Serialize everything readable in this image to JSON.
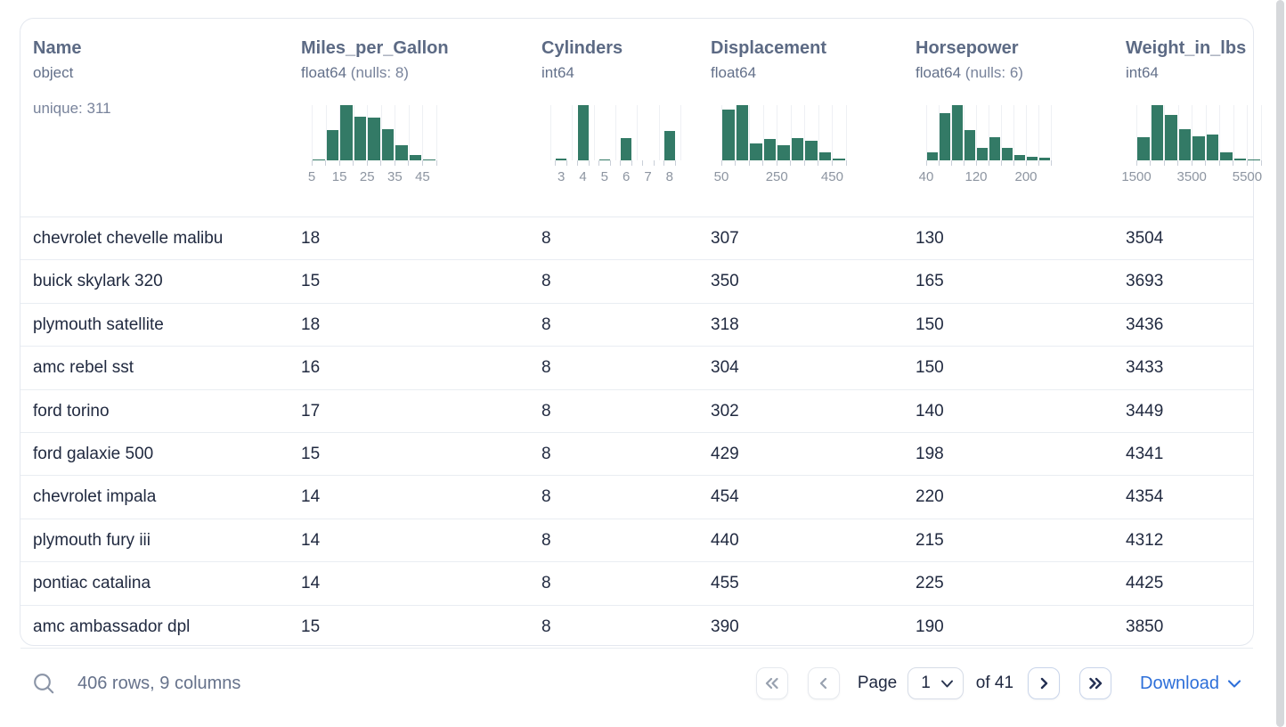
{
  "table": {
    "columns": [
      {
        "name": "Name",
        "dtype": "object",
        "nulls": "",
        "extra": "unique: 311",
        "histogram": null
      },
      {
        "name": "Miles_per_Gallon",
        "dtype": "float64",
        "nulls": "(nulls: 8)",
        "extra": "",
        "histogram": {
          "type": "bar",
          "mode": "boundary",
          "bars": [
            2,
            55,
            100,
            79,
            78,
            56,
            27,
            10,
            2
          ],
          "bin_start": 5,
          "bin_width": 5,
          "ticks": [
            {
              "i": 0,
              "t": "5"
            },
            {
              "i": 2,
              "t": "15"
            },
            {
              "i": 4,
              "t": "25"
            },
            {
              "i": 6,
              "t": "35"
            },
            {
              "i": 8,
              "t": "45"
            }
          ]
        }
      },
      {
        "name": "Cylinders",
        "dtype": "int64",
        "nulls": "",
        "extra": "",
        "histogram": {
          "type": "bar",
          "mode": "center",
          "bars": [
            3,
            100,
            2,
            41,
            0,
            54
          ],
          "ticks": [
            {
              "i": 0,
              "t": "3"
            },
            {
              "i": 1,
              "t": "4"
            },
            {
              "i": 2,
              "t": "5"
            },
            {
              "i": 3,
              "t": "6"
            },
            {
              "i": 4,
              "t": "7"
            },
            {
              "i": 5,
              "t": "8"
            }
          ]
        }
      },
      {
        "name": "Displacement",
        "dtype": "float64",
        "nulls": "",
        "extra": "",
        "histogram": {
          "type": "bar",
          "mode": "boundary",
          "bars": [
            92,
            100,
            30,
            38,
            27,
            40,
            36,
            15,
            4
          ],
          "bin_start": 50,
          "bin_width": 50,
          "ticks": [
            {
              "i": 0,
              "t": "50"
            },
            {
              "i": 4,
              "t": "250"
            },
            {
              "i": 8,
              "t": "450"
            }
          ]
        }
      },
      {
        "name": "Horsepower",
        "dtype": "float64",
        "nulls": "(nulls: 6)",
        "extra": "",
        "histogram": {
          "type": "bar",
          "mode": "boundary",
          "bars": [
            15,
            85,
            100,
            55,
            22,
            42,
            22,
            10,
            6,
            5
          ],
          "bin_start": 40,
          "bin_width": 20,
          "ticks": [
            {
              "i": 0,
              "t": "40"
            },
            {
              "i": 4,
              "t": "120"
            },
            {
              "i": 8,
              "t": "200"
            }
          ]
        }
      },
      {
        "name": "Weight_in_lbs",
        "dtype": "int64",
        "nulls": "",
        "extra": "",
        "histogram": {
          "type": "bar",
          "mode": "boundary",
          "bars": [
            42,
            100,
            82,
            57,
            44,
            47,
            14,
            3,
            1
          ],
          "bin_start": 1500,
          "bin_width": 500,
          "ticks": [
            {
              "i": 0,
              "t": "1500"
            },
            {
              "i": 4,
              "t": "3500"
            },
            {
              "i": 8,
              "t": "5500"
            }
          ]
        }
      }
    ],
    "rows": [
      [
        "chevrolet chevelle malibu",
        "18",
        "8",
        "307",
        "130",
        "3504"
      ],
      [
        "buick skylark 320",
        "15",
        "8",
        "350",
        "165",
        "3693"
      ],
      [
        "plymouth satellite",
        "18",
        "8",
        "318",
        "150",
        "3436"
      ],
      [
        "amc rebel sst",
        "16",
        "8",
        "304",
        "150",
        "3433"
      ],
      [
        "ford torino",
        "17",
        "8",
        "302",
        "140",
        "3449"
      ],
      [
        "ford galaxie 500",
        "15",
        "8",
        "429",
        "198",
        "4341"
      ],
      [
        "chevrolet impala",
        "14",
        "8",
        "454",
        "220",
        "4354"
      ],
      [
        "plymouth fury iii",
        "14",
        "8",
        "440",
        "215",
        "4312"
      ],
      [
        "pontiac catalina",
        "14",
        "8",
        "455",
        "225",
        "4425"
      ],
      [
        "amc ambassador dpl",
        "15",
        "8",
        "390",
        "190",
        "3850"
      ]
    ]
  },
  "footer": {
    "summary": "406 rows, 9 columns",
    "page_label": "Page",
    "page_value": "1",
    "of_label": "of 41",
    "download_label": "Download"
  },
  "icons": {
    "search": "magnifier-outline",
    "first_page": "double-chevron-left",
    "prev_page": "chevron-left",
    "next_page": "chevron-right",
    "last_page": "double-chevron-right",
    "page_select_caret": "chevron-down",
    "download_caret": "chevron-down"
  },
  "colors": {
    "histogram_bar": "#337a66",
    "accent_blue": "#2d6fd9",
    "header_text": "#5c6a84",
    "row_text": "#212a40"
  }
}
